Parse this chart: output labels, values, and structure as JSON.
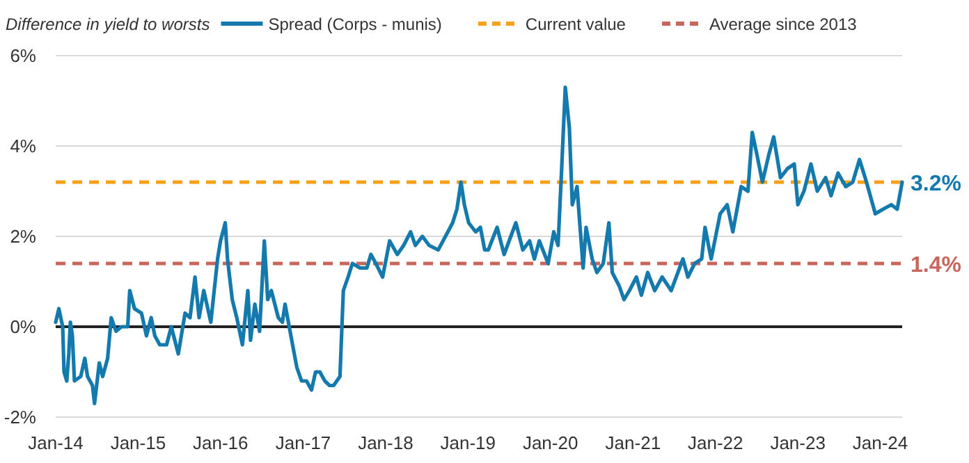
{
  "chart_data": {
    "type": "line",
    "ylabel": "Difference in yield to worsts",
    "xlim": [
      "2014-01-01",
      "2024-04-07"
    ],
    "ylim": [
      -2,
      6
    ],
    "yticks": [
      {
        "value": -2,
        "label": "-2%"
      },
      {
        "value": 0,
        "label": "0%"
      },
      {
        "value": 2,
        "label": "2%"
      },
      {
        "value": 4,
        "label": "4%"
      },
      {
        "value": 6,
        "label": "6%"
      }
    ],
    "xticks": [
      {
        "value": "2014-01",
        "label": "Jan-14"
      },
      {
        "value": "2015-01",
        "label": "Jan-15"
      },
      {
        "value": "2016-01",
        "label": "Jan-16"
      },
      {
        "value": "2017-01",
        "label": "Jan-17"
      },
      {
        "value": "2018-01",
        "label": "Jan-18"
      },
      {
        "value": "2019-01",
        "label": "Jan-19"
      },
      {
        "value": "2020-01",
        "label": "Jan-20"
      },
      {
        "value": "2021-01",
        "label": "Jan-21"
      },
      {
        "value": "2022-01",
        "label": "Jan-22"
      },
      {
        "value": "2023-01",
        "label": "Jan-23"
      },
      {
        "value": "2024-01",
        "label": "Jan-24"
      }
    ],
    "grid": "y",
    "legend": "top",
    "line_style": "solid",
    "marker": "none",
    "series": [
      {
        "name": "Spread (Corps - munis)",
        "color": "#1479ac",
        "x": [
          "2014-01-01",
          "2014-01-15",
          "2014-02-01",
          "2014-02-07",
          "2014-02-19",
          "2014-02-28",
          "2014-03-07",
          "2014-03-16",
          "2014-03-25",
          "2014-04-22",
          "2014-05-10",
          "2014-05-22",
          "2014-06-13",
          "2014-06-22",
          "2014-07-13",
          "2014-07-28",
          "2014-08-19",
          "2014-09-04",
          "2014-09-25",
          "2014-10-19",
          "2014-11-16",
          "2014-11-25",
          "2014-12-16",
          "2015-01-16",
          "2015-02-07",
          "2015-02-28",
          "2015-03-16",
          "2015-04-07",
          "2015-05-07",
          "2015-05-28",
          "2015-06-28",
          "2015-07-28",
          "2015-08-19",
          "2015-09-10",
          "2015-09-28",
          "2015-10-19",
          "2015-11-19",
          "2015-12-19",
          "2016-01-01",
          "2016-01-22",
          "2016-02-01",
          "2016-02-22",
          "2016-03-13",
          "2016-04-07",
          "2016-05-01",
          "2016-05-13",
          "2016-06-01",
          "2016-06-22",
          "2016-07-13",
          "2016-07-28",
          "2016-08-13",
          "2016-09-13",
          "2016-10-01",
          "2016-10-13",
          "2016-11-04",
          "2016-12-04",
          "2016-12-25",
          "2017-01-16",
          "2017-02-07",
          "2017-02-25",
          "2017-03-16",
          "2017-04-07",
          "2017-04-28",
          "2017-05-16",
          "2017-06-13",
          "2017-06-28",
          "2017-07-19",
          "2017-08-07",
          "2017-09-10",
          "2017-10-10",
          "2017-10-28",
          "2017-11-19",
          "2017-12-19",
          "2018-01-19",
          "2018-02-22",
          "2018-03-22",
          "2018-04-22",
          "2018-05-13",
          "2018-06-13",
          "2018-07-13",
          "2018-08-22",
          "2018-10-04",
          "2018-10-25",
          "2018-11-13",
          "2018-12-01",
          "2018-12-16",
          "2019-01-04",
          "2019-02-04",
          "2019-02-25",
          "2019-03-16",
          "2019-04-01",
          "2019-05-10",
          "2019-06-10",
          "2019-08-01",
          "2019-09-01",
          "2019-10-01",
          "2019-10-22",
          "2019-11-13",
          "2019-12-22",
          "2020-01-16",
          "2020-02-04",
          "2020-02-19",
          "2020-03-07",
          "2020-03-25",
          "2020-04-07",
          "2020-04-28",
          "2020-05-13",
          "2020-05-25",
          "2020-06-07",
          "2020-07-04",
          "2020-07-25",
          "2020-08-22",
          "2020-09-16",
          "2020-10-01",
          "2020-11-01",
          "2020-11-22",
          "2020-12-16",
          "2021-01-16",
          "2021-02-07",
          "2021-03-07",
          "2021-04-07",
          "2021-05-10",
          "2021-06-19",
          "2021-08-10",
          "2021-09-01",
          "2021-10-01",
          "2021-11-01",
          "2021-11-16",
          "2021-12-13",
          "2022-01-22",
          "2022-02-22",
          "2022-03-19",
          "2022-04-25",
          "2022-05-25",
          "2022-06-13",
          "2022-07-04",
          "2022-07-28",
          "2022-08-25",
          "2022-09-16",
          "2022-10-16",
          "2022-11-16",
          "2022-12-16",
          "2023-01-01",
          "2023-01-28",
          "2023-02-28",
          "2023-03-28",
          "2023-05-04",
          "2023-05-28",
          "2023-06-28",
          "2023-08-01",
          "2023-09-01",
          "2023-10-01",
          "2023-11-01",
          "2023-12-10",
          "2024-01-13",
          "2024-02-19",
          "2024-03-16",
          "2024-04-07"
        ],
        "values": [
          0.1,
          0.4,
          0.0,
          -1.0,
          -1.2,
          -0.6,
          0.1,
          -0.2,
          -1.2,
          -1.1,
          -0.7,
          -1.1,
          -1.3,
          -1.7,
          -0.8,
          -1.1,
          -0.7,
          0.2,
          -0.1,
          0.0,
          0.0,
          0.8,
          0.4,
          0.3,
          -0.2,
          0.2,
          -0.2,
          -0.4,
          -0.4,
          0.0,
          -0.6,
          0.3,
          0.2,
          1.1,
          0.2,
          0.8,
          0.1,
          1.5,
          1.9,
          2.3,
          1.5,
          0.6,
          0.2,
          -0.4,
          0.8,
          -0.3,
          0.5,
          -0.1,
          1.9,
          0.6,
          0.8,
          0.2,
          0.1,
          0.5,
          -0.1,
          -0.9,
          -1.2,
          -1.2,
          -1.4,
          -1.0,
          -1.0,
          -1.2,
          -1.3,
          -1.3,
          -1.1,
          0.8,
          1.1,
          1.4,
          1.3,
          1.3,
          1.6,
          1.4,
          1.1,
          1.9,
          1.6,
          1.8,
          2.1,
          1.8,
          2.0,
          1.8,
          1.7,
          2.1,
          2.3,
          2.6,
          3.2,
          2.7,
          2.3,
          2.1,
          2.2,
          1.7,
          1.7,
          2.2,
          1.6,
          2.3,
          1.7,
          1.9,
          1.5,
          1.9,
          1.4,
          2.1,
          1.8,
          3.4,
          5.3,
          4.4,
          2.7,
          3.1,
          2.1,
          1.3,
          2.2,
          1.5,
          1.2,
          1.4,
          2.3,
          1.2,
          0.9,
          0.6,
          0.8,
          1.1,
          0.7,
          1.2,
          0.8,
          1.1,
          0.8,
          1.5,
          1.1,
          1.4,
          1.5,
          2.2,
          1.5,
          2.5,
          2.7,
          2.1,
          3.1,
          3.0,
          4.3,
          3.8,
          3.2,
          3.8,
          4.2,
          3.3,
          3.5,
          3.6,
          2.7,
          3.0,
          3.6,
          3.0,
          3.3,
          2.9,
          3.4,
          3.1,
          3.2,
          3.7,
          3.2,
          2.5,
          2.6,
          2.7,
          2.6,
          3.2
        ]
      }
    ],
    "ref_lines": [
      {
        "axis": "y",
        "value": 3.2,
        "label": "Current value",
        "color": "#f7a11a",
        "line_style": "dashed"
      },
      {
        "axis": "y",
        "value": 1.4,
        "label": "Average since 2013",
        "color": "#c8665c",
        "line_style": "dashed"
      }
    ],
    "annotations": [
      {
        "text": "3.2%",
        "x": "2024-04-07",
        "y": 3.2
      },
      {
        "text": "1.4%",
        "x": "2024-04-07",
        "y": 1.4
      }
    ]
  }
}
